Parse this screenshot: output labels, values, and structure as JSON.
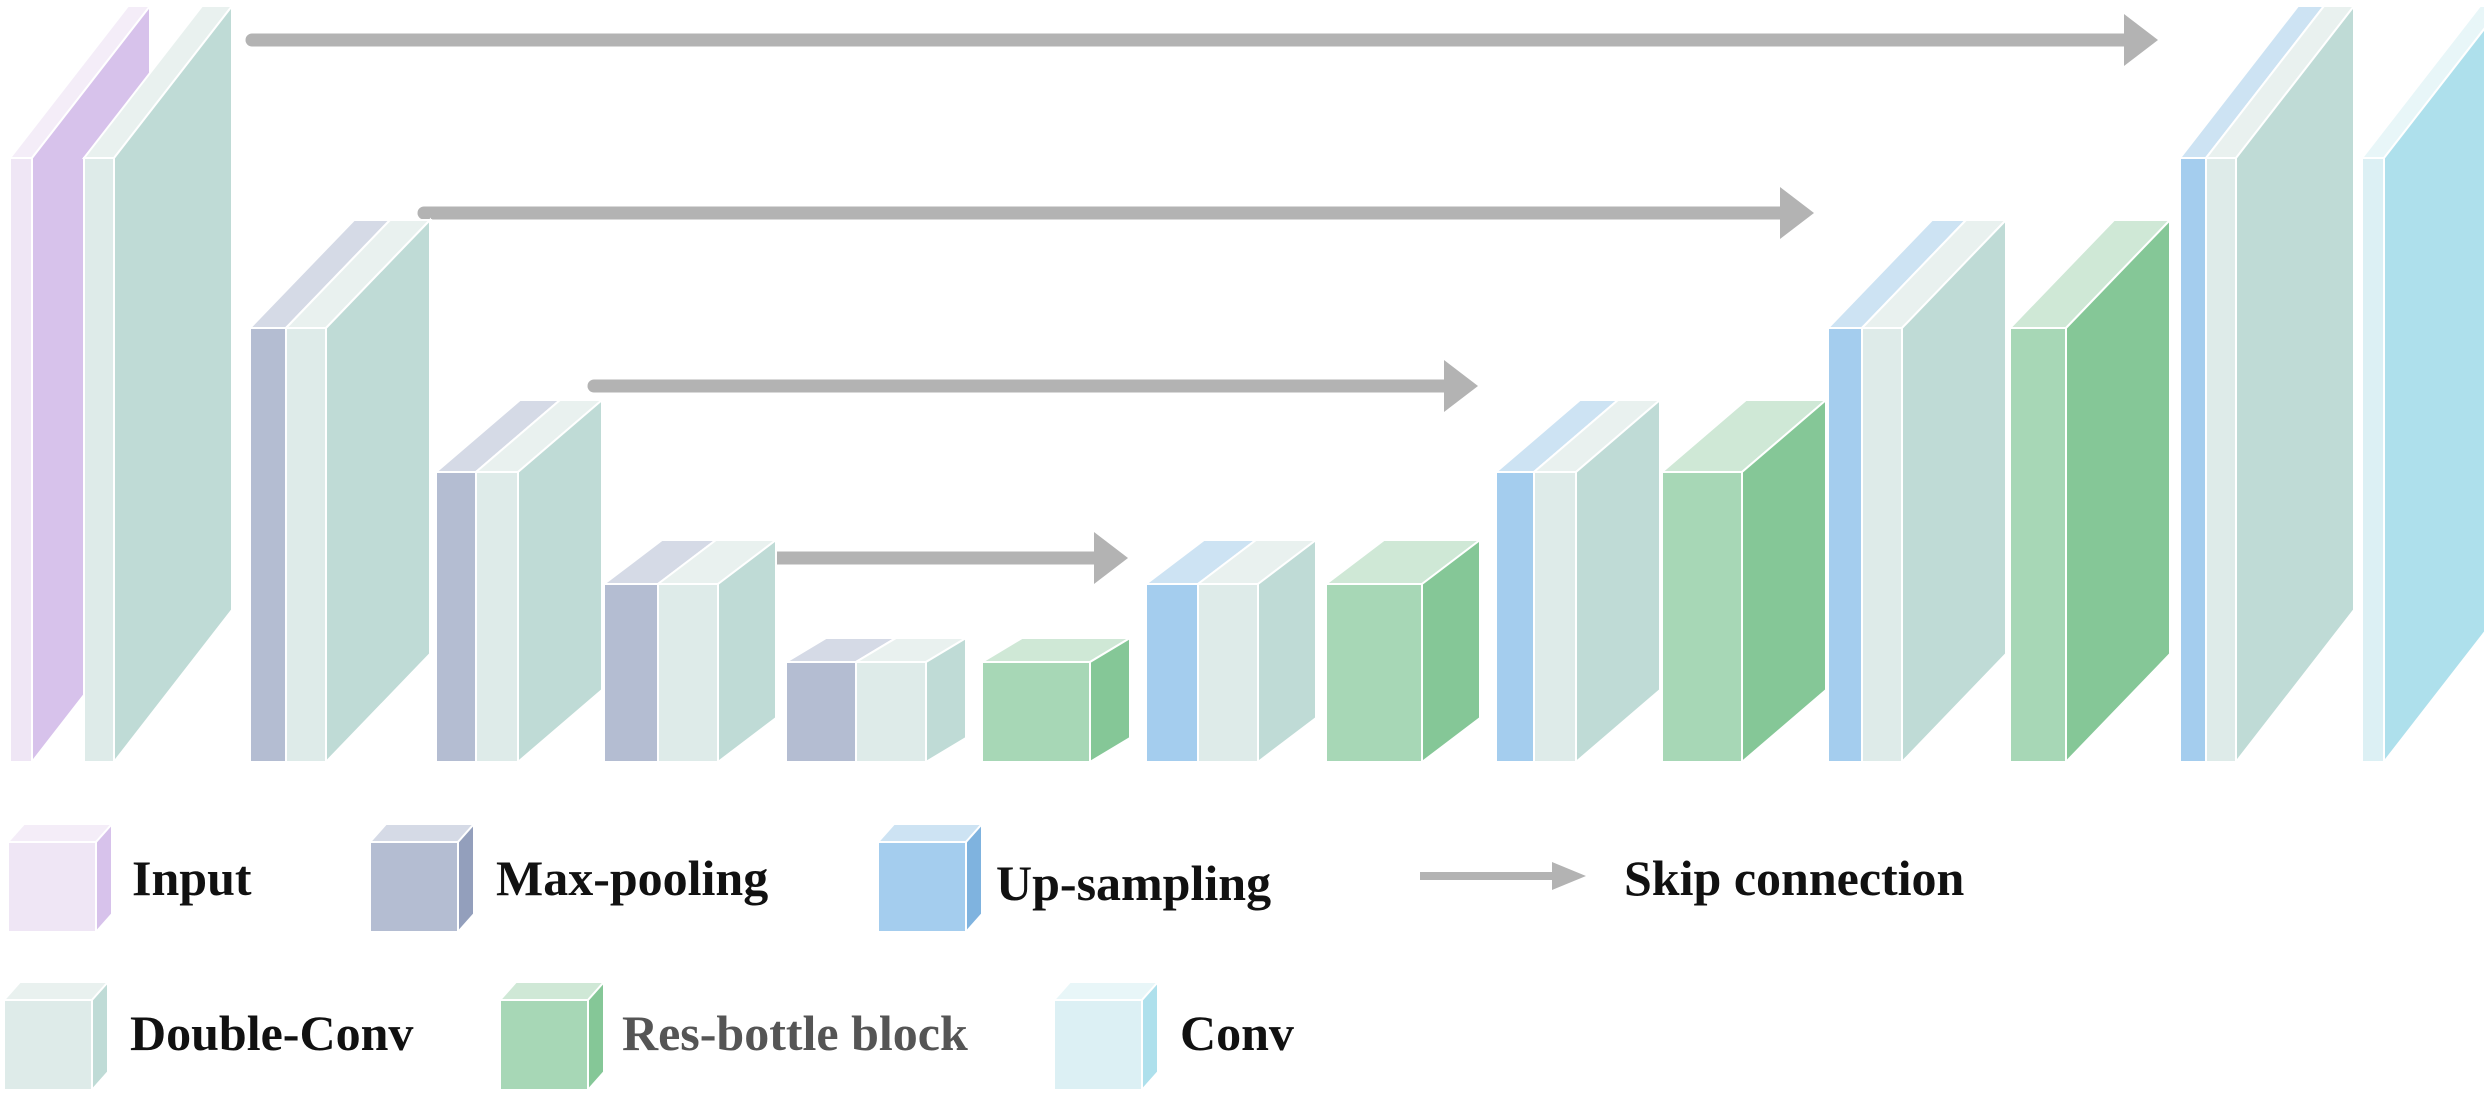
{
  "colors": {
    "input": {
      "front": "#efe6f5",
      "side": "#d7c2eb",
      "top": "#f4edf8"
    },
    "maxpool": {
      "front": "#b4bdd2",
      "side": "#939fbc",
      "top": "#d5dae6"
    },
    "dconv": {
      "front": "#deebe9",
      "side": "#bfdbd6",
      "top": "#e9f1ef"
    },
    "upsample": {
      "front": "#a4cdee",
      "side": "#7fb3df",
      "top": "#cde3f3"
    },
    "resbottle": {
      "front": "#a7d7b6",
      "side": "#85c797",
      "top": "#cfe8d6"
    },
    "conv": {
      "front": "#dcf0f4",
      "side": "#aee0ec",
      "top": "#e8f6f8"
    },
    "arrow": "#b3b3b3",
    "legend_text": "#111111",
    "legend_text_muted": "#555555"
  },
  "legend": {
    "input": "Input",
    "maxpool": "Max-pooling",
    "upsample": "Up-sampling",
    "skip": "Skip connection",
    "dconv": "Double-Conv",
    "resbottle": "Res-bottle block",
    "conv": "Conv"
  },
  "icons": {
    "legend_input": "cube-icon",
    "legend_maxpool": "cube-icon",
    "legend_upsample": "cube-icon",
    "legend_skip": "arrow-right-icon",
    "legend_dconv": "cube-icon",
    "legend_resbottle": "cube-icon",
    "legend_conv": "cube-icon"
  }
}
